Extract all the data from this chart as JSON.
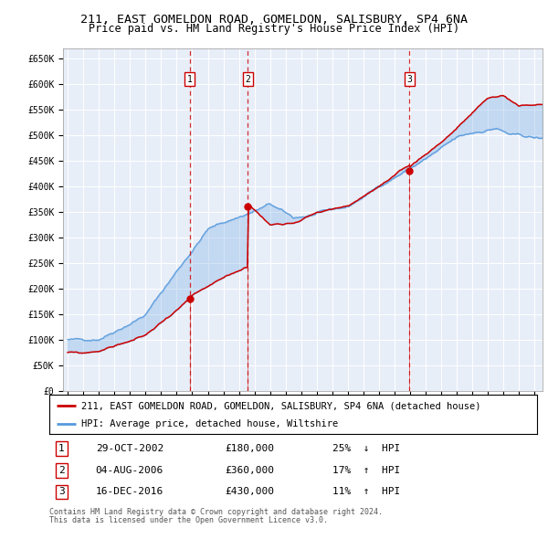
{
  "title": "211, EAST GOMELDON ROAD, GOMELDON, SALISBURY, SP4 6NA",
  "subtitle": "Price paid vs. HM Land Registry's House Price Index (HPI)",
  "red_label": "211, EAST GOMELDON ROAD, GOMELDON, SALISBURY, SP4 6NA (detached house)",
  "blue_label": "HPI: Average price, detached house, Wiltshire",
  "ylim": [
    0,
    670000
  ],
  "yticks": [
    0,
    50000,
    100000,
    150000,
    200000,
    250000,
    300000,
    350000,
    400000,
    450000,
    500000,
    550000,
    600000,
    650000
  ],
  "ytick_labels": [
    "£0",
    "£50K",
    "£100K",
    "£150K",
    "£200K",
    "£250K",
    "£300K",
    "£350K",
    "£400K",
    "£450K",
    "£500K",
    "£550K",
    "£600K",
    "£650K"
  ],
  "xlim_start": 1994.7,
  "xlim_end": 2025.5,
  "sale_events": [
    {
      "num": 1,
      "year": 2002.83,
      "price": 180000,
      "date": "29-OCT-2002",
      "pct": "25%",
      "dir": "↓"
    },
    {
      "num": 2,
      "year": 2006.58,
      "price": 360000,
      "date": "04-AUG-2006",
      "pct": "17%",
      "dir": "↑"
    },
    {
      "num": 3,
      "year": 2016.96,
      "price": 430000,
      "date": "16-DEC-2016",
      "pct": "11%",
      "dir": "↑"
    }
  ],
  "footer1": "Contains HM Land Registry data © Crown copyright and database right 2024.",
  "footer2": "This data is licensed under the Open Government Licence v3.0.",
  "bg_color": "#e8eef8",
  "grid_color": "#ffffff",
  "red_color": "#cc0000",
  "blue_color": "#5599dd",
  "title_fontsize": 9.5,
  "subtitle_fontsize": 8.5,
  "axis_fontsize": 7,
  "legend_fontsize": 7.5,
  "table_fontsize": 8,
  "footer_fontsize": 6
}
